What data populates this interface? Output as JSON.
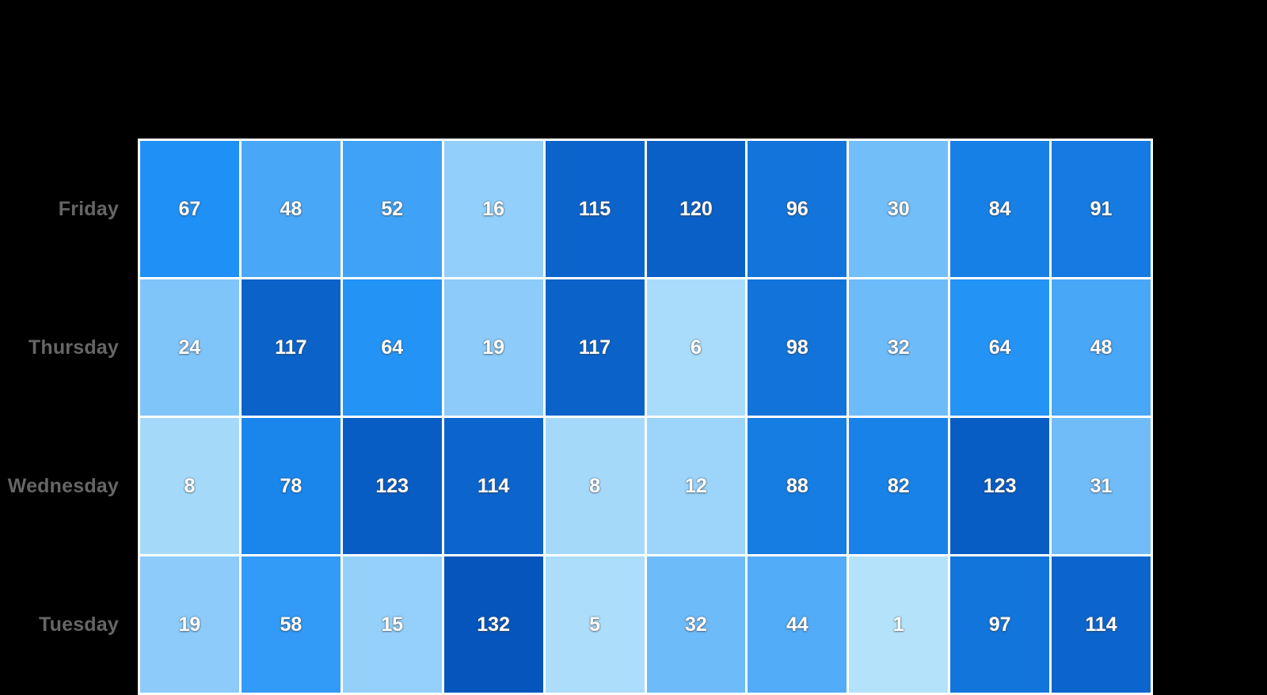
{
  "background_color": "#000000",
  "chart_data": {
    "type": "heatmap",
    "rows": [
      "Friday",
      "Thursday",
      "Wednesday",
      "Tuesday"
    ],
    "values": [
      [
        67,
        48,
        52,
        16,
        115,
        120,
        96,
        30,
        84,
        91
      ],
      [
        24,
        117,
        64,
        19,
        117,
        6,
        98,
        32,
        64,
        48
      ],
      [
        8,
        78,
        123,
        114,
        8,
        12,
        88,
        82,
        123,
        31
      ],
      [
        19,
        58,
        15,
        132,
        5,
        32,
        44,
        1,
        97,
        114
      ]
    ],
    "num_columns": 10,
    "value_range": [
      1,
      132
    ],
    "colorscale": {
      "stops": [
        {
          "t": 0.0,
          "color": "#b5e2fb"
        },
        {
          "t": 0.5,
          "color": "#1e90f6"
        },
        {
          "t": 1.0,
          "color": "#0555bd"
        }
      ]
    },
    "layout": {
      "grid_line_color": "#ffffff",
      "row_label_color": "#666666",
      "cell_text_color": "#ffffff",
      "legend": "none",
      "grid": "white gaps between cells",
      "bottom_row_clipped": true
    }
  }
}
